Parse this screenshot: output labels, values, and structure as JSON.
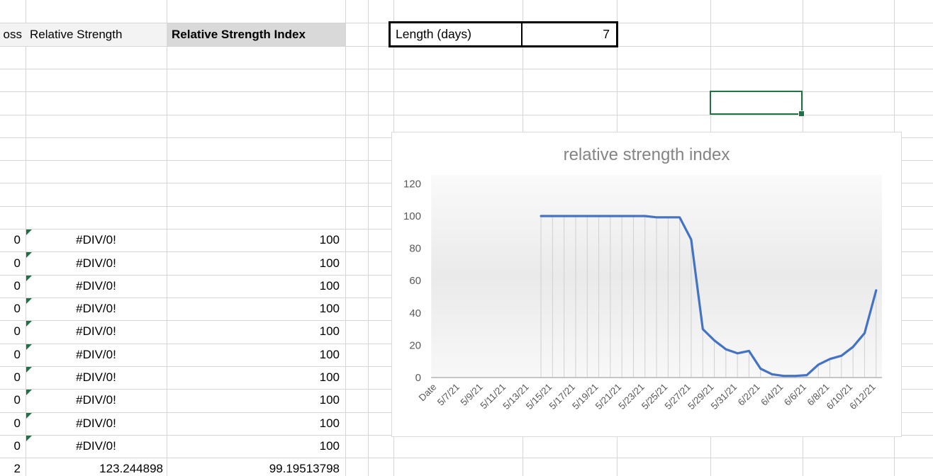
{
  "sheet": {
    "headers": {
      "loss_partial": "oss",
      "relative_strength": "Relative Strength",
      "rsi": "Relative Strength Index"
    },
    "length_box": {
      "label": "Length (days)",
      "value": "7"
    },
    "rows": [
      {
        "gain": "0",
        "rs": "#DIV/0!",
        "rsi": "100",
        "error": true
      },
      {
        "gain": "0",
        "rs": "#DIV/0!",
        "rsi": "100",
        "error": true
      },
      {
        "gain": "0",
        "rs": "#DIV/0!",
        "rsi": "100",
        "error": true
      },
      {
        "gain": "0",
        "rs": "#DIV/0!",
        "rsi": "100",
        "error": true
      },
      {
        "gain": "0",
        "rs": "#DIV/0!",
        "rsi": "100",
        "error": true
      },
      {
        "gain": "0",
        "rs": "#DIV/0!",
        "rsi": "100",
        "error": true
      },
      {
        "gain": "0",
        "rs": "#DIV/0!",
        "rsi": "100",
        "error": true
      },
      {
        "gain": "0",
        "rs": "#DIV/0!",
        "rsi": "100",
        "error": true
      },
      {
        "gain": "0",
        "rs": "#DIV/0!",
        "rsi": "100",
        "error": true
      },
      {
        "gain": "0",
        "rs": "#DIV/0!",
        "rsi": "100",
        "error": true
      },
      {
        "gain": "2",
        "rs": "123.244898",
        "rsi": "99.19513798",
        "error": false
      }
    ],
    "colors": {
      "selection_green": "#217346",
      "error_indicator_green": "#1E7145",
      "gridline": "#d6d6d6",
      "header_light_fill": "#f3f3f3",
      "header_dark_fill": "#d9d9d9"
    }
  },
  "chart_data": {
    "type": "line",
    "title": "relative strength index",
    "xlabel": "",
    "ylabel": "",
    "ylim": [
      0,
      120
    ],
    "y_ticks": [
      120,
      100,
      80,
      60,
      40,
      20,
      0
    ],
    "x_tick_labels": [
      "Date",
      "5/7/21",
      "5/9/21",
      "5/11/21",
      "5/13/21",
      "5/15/21",
      "5/17/21",
      "5/19/21",
      "5/21/21",
      "5/23/21",
      "5/25/21",
      "5/27/21",
      "5/29/21",
      "5/31/21",
      "6/2/21",
      "6/4/21",
      "6/6/21",
      "6/8/21",
      "6/10/21",
      "6/12/21"
    ],
    "grid": "vertical-drop-lines",
    "legend_position": "none",
    "series": [
      {
        "name": "relative strength index",
        "x": [
          "5/14/21",
          "5/15/21",
          "5/16/21",
          "5/17/21",
          "5/18/21",
          "5/19/21",
          "5/20/21",
          "5/21/21",
          "5/22/21",
          "5/23/21",
          "5/24/21",
          "5/25/21",
          "5/26/21",
          "5/27/21",
          "5/28/21",
          "5/29/21",
          "5/30/21",
          "5/31/21",
          "6/1/21",
          "6/2/21",
          "6/3/21",
          "6/4/21",
          "6/5/21",
          "6/6/21",
          "6/7/21",
          "6/8/21",
          "6/9/21",
          "6/10/21",
          "6/11/21",
          "6/12/21"
        ],
        "values": [
          100,
          100,
          100,
          100,
          100,
          100,
          100,
          100,
          100,
          100,
          99.2,
          99.2,
          99.2,
          85.5,
          30,
          23,
          17.5,
          15,
          16.5,
          5.5,
          2,
          1,
          1,
          1.5,
          8,
          11.5,
          13.5,
          19,
          27.5,
          54
        ]
      }
    ],
    "line_color": "#4472C4",
    "title_color": "#848484",
    "tick_label_color": "#595959",
    "axis_line_color": "#b3b3b3",
    "drop_line_color": "#d0d0d0"
  }
}
